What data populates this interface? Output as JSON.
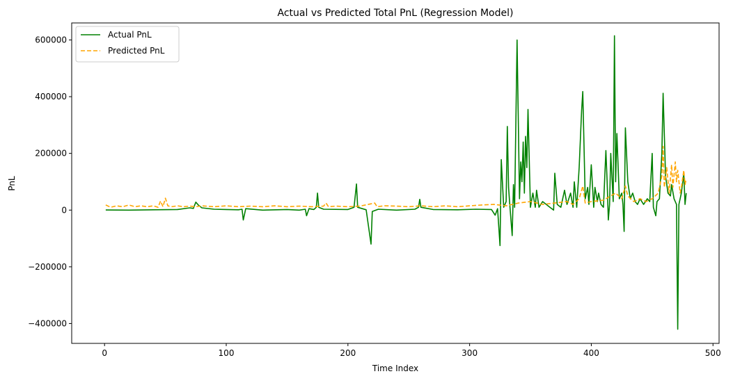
{
  "chart_data": {
    "type": "line",
    "title": "Actual vs Predicted Total PnL (Regression Model)",
    "xlabel": "Time Index",
    "ylabel": "PnL",
    "xlim": [
      -27,
      505
    ],
    "ylim": [
      -470000,
      660000
    ],
    "xticks": [
      0,
      100,
      200,
      300,
      400,
      500
    ],
    "yticks": [
      -400000,
      -200000,
      0,
      200000,
      400000,
      600000
    ],
    "xtick_labels": [
      "0",
      "100",
      "200",
      "300",
      "400",
      "500"
    ],
    "ytick_labels": [
      "−400000",
      "−200000",
      "0",
      "200000",
      "400000",
      "600000"
    ],
    "grid": false,
    "legend_position": "top-left",
    "series": [
      {
        "name": "Actual PnL",
        "color": "#008000",
        "style": "solid",
        "points": [
          [
            1,
            500
          ],
          [
            20,
            0
          ],
          [
            40,
            1000
          ],
          [
            60,
            2000
          ],
          [
            70,
            8000
          ],
          [
            73,
            6000
          ],
          [
            75,
            28000
          ],
          [
            77,
            18000
          ],
          [
            80,
            8000
          ],
          [
            90,
            3000
          ],
          [
            100,
            2000
          ],
          [
            110,
            1000
          ],
          [
            113,
            3000
          ],
          [
            114,
            -35000
          ],
          [
            116,
            5000
          ],
          [
            130,
            0
          ],
          [
            150,
            2000
          ],
          [
            160,
            0
          ],
          [
            165,
            3000
          ],
          [
            166,
            -20000
          ],
          [
            168,
            5000
          ],
          [
            172,
            2000
          ],
          [
            174,
            10000
          ],
          [
            175,
            60000
          ],
          [
            176,
            10000
          ],
          [
            180,
            3000
          ],
          [
            200,
            2000
          ],
          [
            205,
            10000
          ],
          [
            207,
            92000
          ],
          [
            208,
            10000
          ],
          [
            215,
            1000
          ],
          [
            219,
            -120000
          ],
          [
            220,
            -5000
          ],
          [
            225,
            3000
          ],
          [
            240,
            0
          ],
          [
            255,
            3000
          ],
          [
            258,
            10000
          ],
          [
            259,
            38000
          ],
          [
            260,
            10000
          ],
          [
            270,
            2000
          ],
          [
            290,
            1000
          ],
          [
            305,
            3000
          ],
          [
            318,
            2000
          ],
          [
            321,
            -18000
          ],
          [
            323,
            5000
          ],
          [
            325,
            -125000
          ],
          [
            326,
            178000
          ],
          [
            328,
            10000
          ],
          [
            330,
            30000
          ],
          [
            331,
            295000
          ],
          [
            332,
            80000
          ],
          [
            333,
            20000
          ],
          [
            335,
            -90000
          ],
          [
            336,
            90000
          ],
          [
            337,
            10000
          ],
          [
            339,
            600000
          ],
          [
            341,
            40000
          ],
          [
            342,
            170000
          ],
          [
            343,
            100000
          ],
          [
            344,
            240000
          ],
          [
            345,
            60000
          ],
          [
            346,
            260000
          ],
          [
            347,
            150000
          ],
          [
            348,
            355000
          ],
          [
            350,
            10000
          ],
          [
            352,
            60000
          ],
          [
            354,
            10000
          ],
          [
            355,
            70000
          ],
          [
            357,
            10000
          ],
          [
            360,
            30000
          ],
          [
            363,
            20000
          ],
          [
            366,
            10000
          ],
          [
            369,
            0
          ],
          [
            370,
            130000
          ],
          [
            372,
            20000
          ],
          [
            375,
            10000
          ],
          [
            378,
            70000
          ],
          [
            380,
            20000
          ],
          [
            383,
            60000
          ],
          [
            385,
            10000
          ],
          [
            386,
            100000
          ],
          [
            388,
            10000
          ],
          [
            390,
            150000
          ],
          [
            392,
            350000
          ],
          [
            393,
            418000
          ],
          [
            395,
            40000
          ],
          [
            397,
            80000
          ],
          [
            398,
            20000
          ],
          [
            400,
            160000
          ],
          [
            402,
            10000
          ],
          [
            403,
            80000
          ],
          [
            405,
            30000
          ],
          [
            406,
            60000
          ],
          [
            408,
            20000
          ],
          [
            410,
            10000
          ],
          [
            412,
            210000
          ],
          [
            413,
            100000
          ],
          [
            414,
            -35000
          ],
          [
            415,
            20000
          ],
          [
            416,
            200000
          ],
          [
            418,
            30000
          ],
          [
            419,
            615000
          ],
          [
            420,
            100000
          ],
          [
            421,
            270000
          ],
          [
            423,
            40000
          ],
          [
            425,
            60000
          ],
          [
            426,
            20000
          ],
          [
            427,
            -75000
          ],
          [
            428,
            290000
          ],
          [
            430,
            100000
          ],
          [
            432,
            40000
          ],
          [
            434,
            60000
          ],
          [
            436,
            30000
          ],
          [
            438,
            20000
          ],
          [
            440,
            40000
          ],
          [
            443,
            20000
          ],
          [
            446,
            40000
          ],
          [
            448,
            30000
          ],
          [
            450,
            200000
          ],
          [
            451,
            10000
          ],
          [
            453,
            -20000
          ],
          [
            454,
            30000
          ],
          [
            456,
            40000
          ],
          [
            458,
            200000
          ],
          [
            459,
            412000
          ],
          [
            461,
            120000
          ],
          [
            463,
            60000
          ],
          [
            465,
            50000
          ],
          [
            466,
            90000
          ],
          [
            468,
            40000
          ],
          [
            470,
            20000
          ],
          [
            471,
            -420000
          ],
          [
            472,
            20000
          ],
          [
            474,
            60000
          ],
          [
            476,
            130000
          ],
          [
            477,
            20000
          ],
          [
            478,
            60000
          ]
        ]
      },
      {
        "name": "Predicted PnL",
        "color": "#ffa500",
        "style": "dashed",
        "points": [
          [
            1,
            18000
          ],
          [
            5,
            10000
          ],
          [
            10,
            15000
          ],
          [
            15,
            12000
          ],
          [
            20,
            18000
          ],
          [
            25,
            12000
          ],
          [
            30,
            15000
          ],
          [
            35,
            12000
          ],
          [
            40,
            15000
          ],
          [
            44,
            10000
          ],
          [
            46,
            32000
          ],
          [
            48,
            12000
          ],
          [
            50,
            42000
          ],
          [
            52,
            15000
          ],
          [
            55,
            12000
          ],
          [
            60,
            15000
          ],
          [
            65,
            12000
          ],
          [
            70,
            14000
          ],
          [
            75,
            12000
          ],
          [
            80,
            15000
          ],
          [
            90,
            12000
          ],
          [
            100,
            15000
          ],
          [
            110,
            12000
          ],
          [
            120,
            14000
          ],
          [
            130,
            12000
          ],
          [
            140,
            15000
          ],
          [
            150,
            12000
          ],
          [
            160,
            14000
          ],
          [
            170,
            12000
          ],
          [
            180,
            14000
          ],
          [
            182,
            25000
          ],
          [
            184,
            12000
          ],
          [
            190,
            14000
          ],
          [
            200,
            12000
          ],
          [
            210,
            14000
          ],
          [
            222,
            25000
          ],
          [
            224,
            12000
          ],
          [
            230,
            15000
          ],
          [
            240,
            14000
          ],
          [
            250,
            12000
          ],
          [
            260,
            15000
          ],
          [
            270,
            12000
          ],
          [
            280,
            15000
          ],
          [
            290,
            12000
          ],
          [
            300,
            15000
          ],
          [
            310,
            18000
          ],
          [
            320,
            20000
          ],
          [
            330,
            15000
          ],
          [
            340,
            25000
          ],
          [
            350,
            30000
          ],
          [
            360,
            20000
          ],
          [
            370,
            25000
          ],
          [
            380,
            30000
          ],
          [
            385,
            20000
          ],
          [
            390,
            40000
          ],
          [
            393,
            85000
          ],
          [
            395,
            25000
          ],
          [
            400,
            30000
          ],
          [
            410,
            35000
          ],
          [
            420,
            60000
          ],
          [
            425,
            40000
          ],
          [
            428,
            85000
          ],
          [
            430,
            50000
          ],
          [
            435,
            30000
          ],
          [
            440,
            40000
          ],
          [
            445,
            30000
          ],
          [
            450,
            40000
          ],
          [
            455,
            60000
          ],
          [
            458,
            120000
          ],
          [
            459,
            225000
          ],
          [
            460,
            80000
          ],
          [
            462,
            150000
          ],
          [
            464,
            60000
          ],
          [
            466,
            160000
          ],
          [
            467,
            80000
          ],
          [
            469,
            170000
          ],
          [
            470,
            100000
          ],
          [
            471,
            140000
          ],
          [
            473,
            60000
          ],
          [
            474,
            80000
          ],
          [
            476,
            140000
          ],
          [
            477,
            90000
          ],
          [
            478,
            110000
          ]
        ]
      }
    ]
  }
}
